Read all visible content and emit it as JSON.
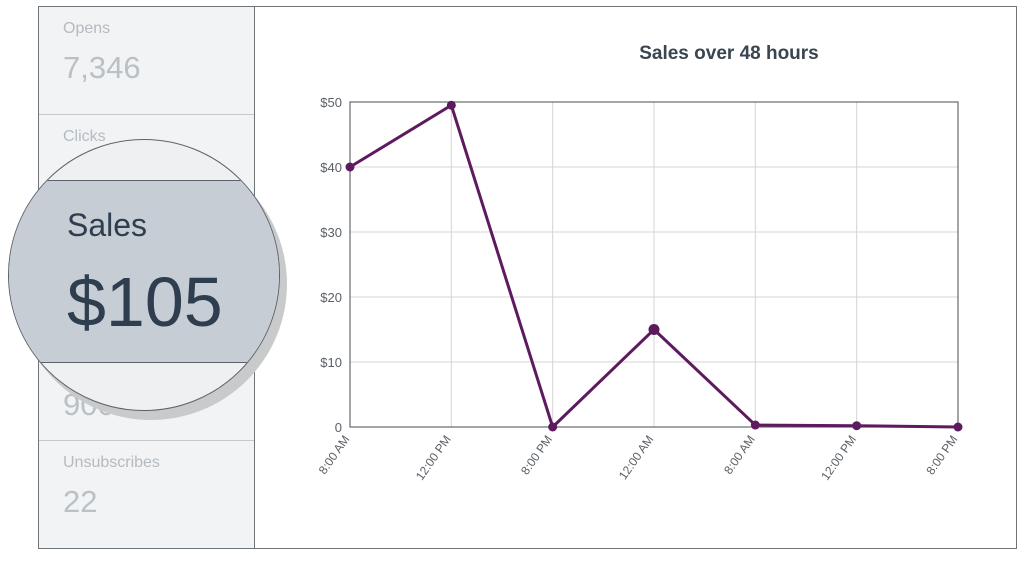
{
  "metrics": {
    "opens": {
      "label": "Opens",
      "value": "7,346"
    },
    "clicks": {
      "label": "Clicks"
    },
    "third": {
      "value": "900"
    },
    "unsubscribes": {
      "label": "Unsubscribes",
      "value": "22"
    }
  },
  "magnifier": {
    "label": "Sales",
    "value": "$105"
  },
  "colors": {
    "line": "#5e1a5f",
    "grid": "#d4d4d4",
    "axis": "#666a6e",
    "sidebar_bg": "#f1f3f4",
    "highlight_band": "#c6cdd5"
  },
  "chart_data": {
    "type": "line",
    "title": "Sales over 48 hours",
    "xlabel": "",
    "ylabel": "",
    "categories": [
      "8:00 AM",
      "12:00 PM",
      "8:00 PM",
      "12:00 AM",
      "8:00 AM",
      "12:00 PM",
      "8:00 PM"
    ],
    "values": [
      40,
      49.5,
      0,
      15,
      0.3,
      0.2,
      0
    ],
    "ylim": [
      0,
      50
    ],
    "yticks": [
      0,
      10,
      20,
      30,
      40,
      50
    ],
    "ytick_labels": [
      "0",
      "$10",
      "$20",
      "$30",
      "$40",
      "$50"
    ],
    "grid": true
  }
}
